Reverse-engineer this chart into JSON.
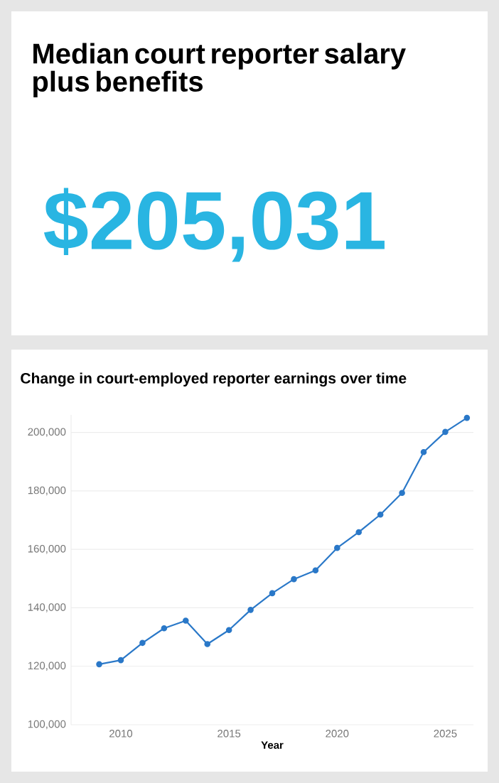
{
  "chart_data": [
    {
      "type": "other",
      "title": "Median court reporter salary plus benefits",
      "annotations": [
        "$205,031"
      ]
    },
    {
      "type": "line",
      "title": "Change in court-employed reporter earnings over time",
      "xlabel": "Year",
      "x": [
        2009,
        2010,
        2011,
        2012,
        2013,
        2014,
        2015,
        2016,
        2017,
        2018,
        2019,
        2020,
        2021,
        2022,
        2023,
        2024,
        2025,
        2026
      ],
      "series": [
        {
          "color": "#2a78c8",
          "values": [
            120700,
            122100,
            128000,
            133000,
            135600,
            127600,
            132400,
            139300,
            145000,
            149800,
            152800,
            160500,
            165900,
            171900,
            179300,
            193300,
            200200,
            205000
          ]
        }
      ],
      "xlim": [
        2007.7,
        2026.3
      ],
      "ylim": [
        100000,
        206000
      ],
      "xticks": [
        2010,
        2015,
        2020,
        2025
      ],
      "yticks": [
        {
          "value": 100000,
          "label": "100,000"
        },
        {
          "value": 120000,
          "label": "120,000"
        },
        {
          "value": 140000,
          "label": "140,000"
        },
        {
          "value": 160000,
          "label": "160,000"
        },
        {
          "value": 180000,
          "label": "180,000"
        },
        {
          "value": 200000,
          "label": "200,000"
        }
      ],
      "grid": "y",
      "marker": "circle",
      "line_style": "solid"
    }
  ]
}
